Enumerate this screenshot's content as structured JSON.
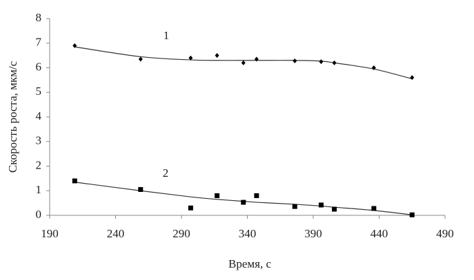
{
  "chart_data": {
    "type": "scatter",
    "x_label": "Время, с",
    "y_label": "Скорость роста, мкм/с",
    "xlim": [
      190,
      490
    ],
    "xticks": [
      190,
      240,
      290,
      340,
      390,
      440,
      490
    ],
    "ylim": [
      0,
      8
    ],
    "yticks": [
      0,
      1,
      2,
      3,
      4,
      5,
      6,
      7,
      8
    ],
    "series": [
      {
        "name": "1",
        "color": "#000000",
        "marker": "diamond",
        "x": [
          209,
          259,
          297,
          317,
          337,
          347,
          376,
          396,
          406,
          436,
          465
        ],
        "values": [
          6.9,
          6.35,
          6.4,
          6.5,
          6.2,
          6.35,
          6.28,
          6.25,
          6.2,
          6.0,
          5.6
        ],
        "trend_values": [
          6.85,
          6.45,
          6.32,
          6.3,
          6.3,
          6.3,
          6.3,
          6.27,
          6.2,
          5.95,
          5.55
        ]
      },
      {
        "name": "2",
        "color": "#000000",
        "marker": "square",
        "x": [
          209,
          259,
          297,
          317,
          337,
          347,
          376,
          396,
          406,
          436,
          465
        ],
        "values": [
          1.4,
          1.05,
          0.3,
          0.8,
          0.53,
          0.8,
          0.36,
          0.42,
          0.25,
          0.28,
          0.02
        ],
        "trend_values": [
          1.35,
          1.0,
          0.75,
          0.65,
          0.57,
          0.53,
          0.45,
          0.38,
          0.33,
          0.2,
          0.02
        ]
      }
    ]
  }
}
